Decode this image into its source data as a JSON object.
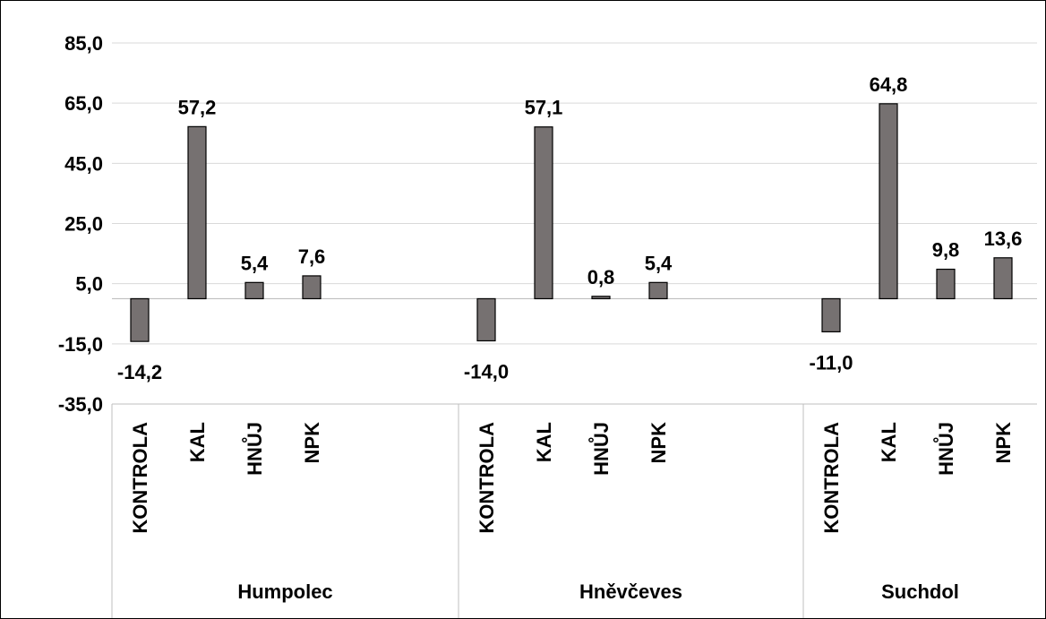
{
  "chart_data": {
    "type": "bar",
    "title": "",
    "xlabel": "",
    "ylabel": "",
    "ylim": [
      -35,
      85
    ],
    "yticks": [
      85,
      65,
      45,
      25,
      5,
      -15,
      -35
    ],
    "ytick_labels": [
      "85,0",
      "65,0",
      "45,0",
      "25,0",
      "5,0",
      "-15,0",
      "-35,0"
    ],
    "grid": true,
    "legend": "none",
    "bar_color": "#767171",
    "groups": [
      {
        "name": "Humpolec",
        "categories": [
          "KONTROLA",
          "KAL",
          "HNŮJ",
          "NPK"
        ],
        "values": [
          -14.2,
          57.2,
          5.4,
          7.6
        ],
        "value_labels": [
          "-14,2",
          "57,2",
          "5,4",
          "7,6"
        ]
      },
      {
        "name": "Hněvčeves",
        "categories": [
          "KONTROLA",
          "KAL",
          "HNŮJ",
          "NPK"
        ],
        "values": [
          -14.0,
          57.1,
          0.8,
          5.4
        ],
        "value_labels": [
          "-14,0",
          "57,1",
          "0,8",
          "5,4"
        ]
      },
      {
        "name": "Suchdol",
        "categories": [
          "KONTROLA",
          "KAL",
          "HNŮJ",
          "NPK"
        ],
        "values": [
          -11.0,
          64.8,
          9.8,
          13.6
        ],
        "value_labels": [
          "-11,0",
          "64,8",
          "9,8",
          "13,6"
        ]
      }
    ]
  }
}
